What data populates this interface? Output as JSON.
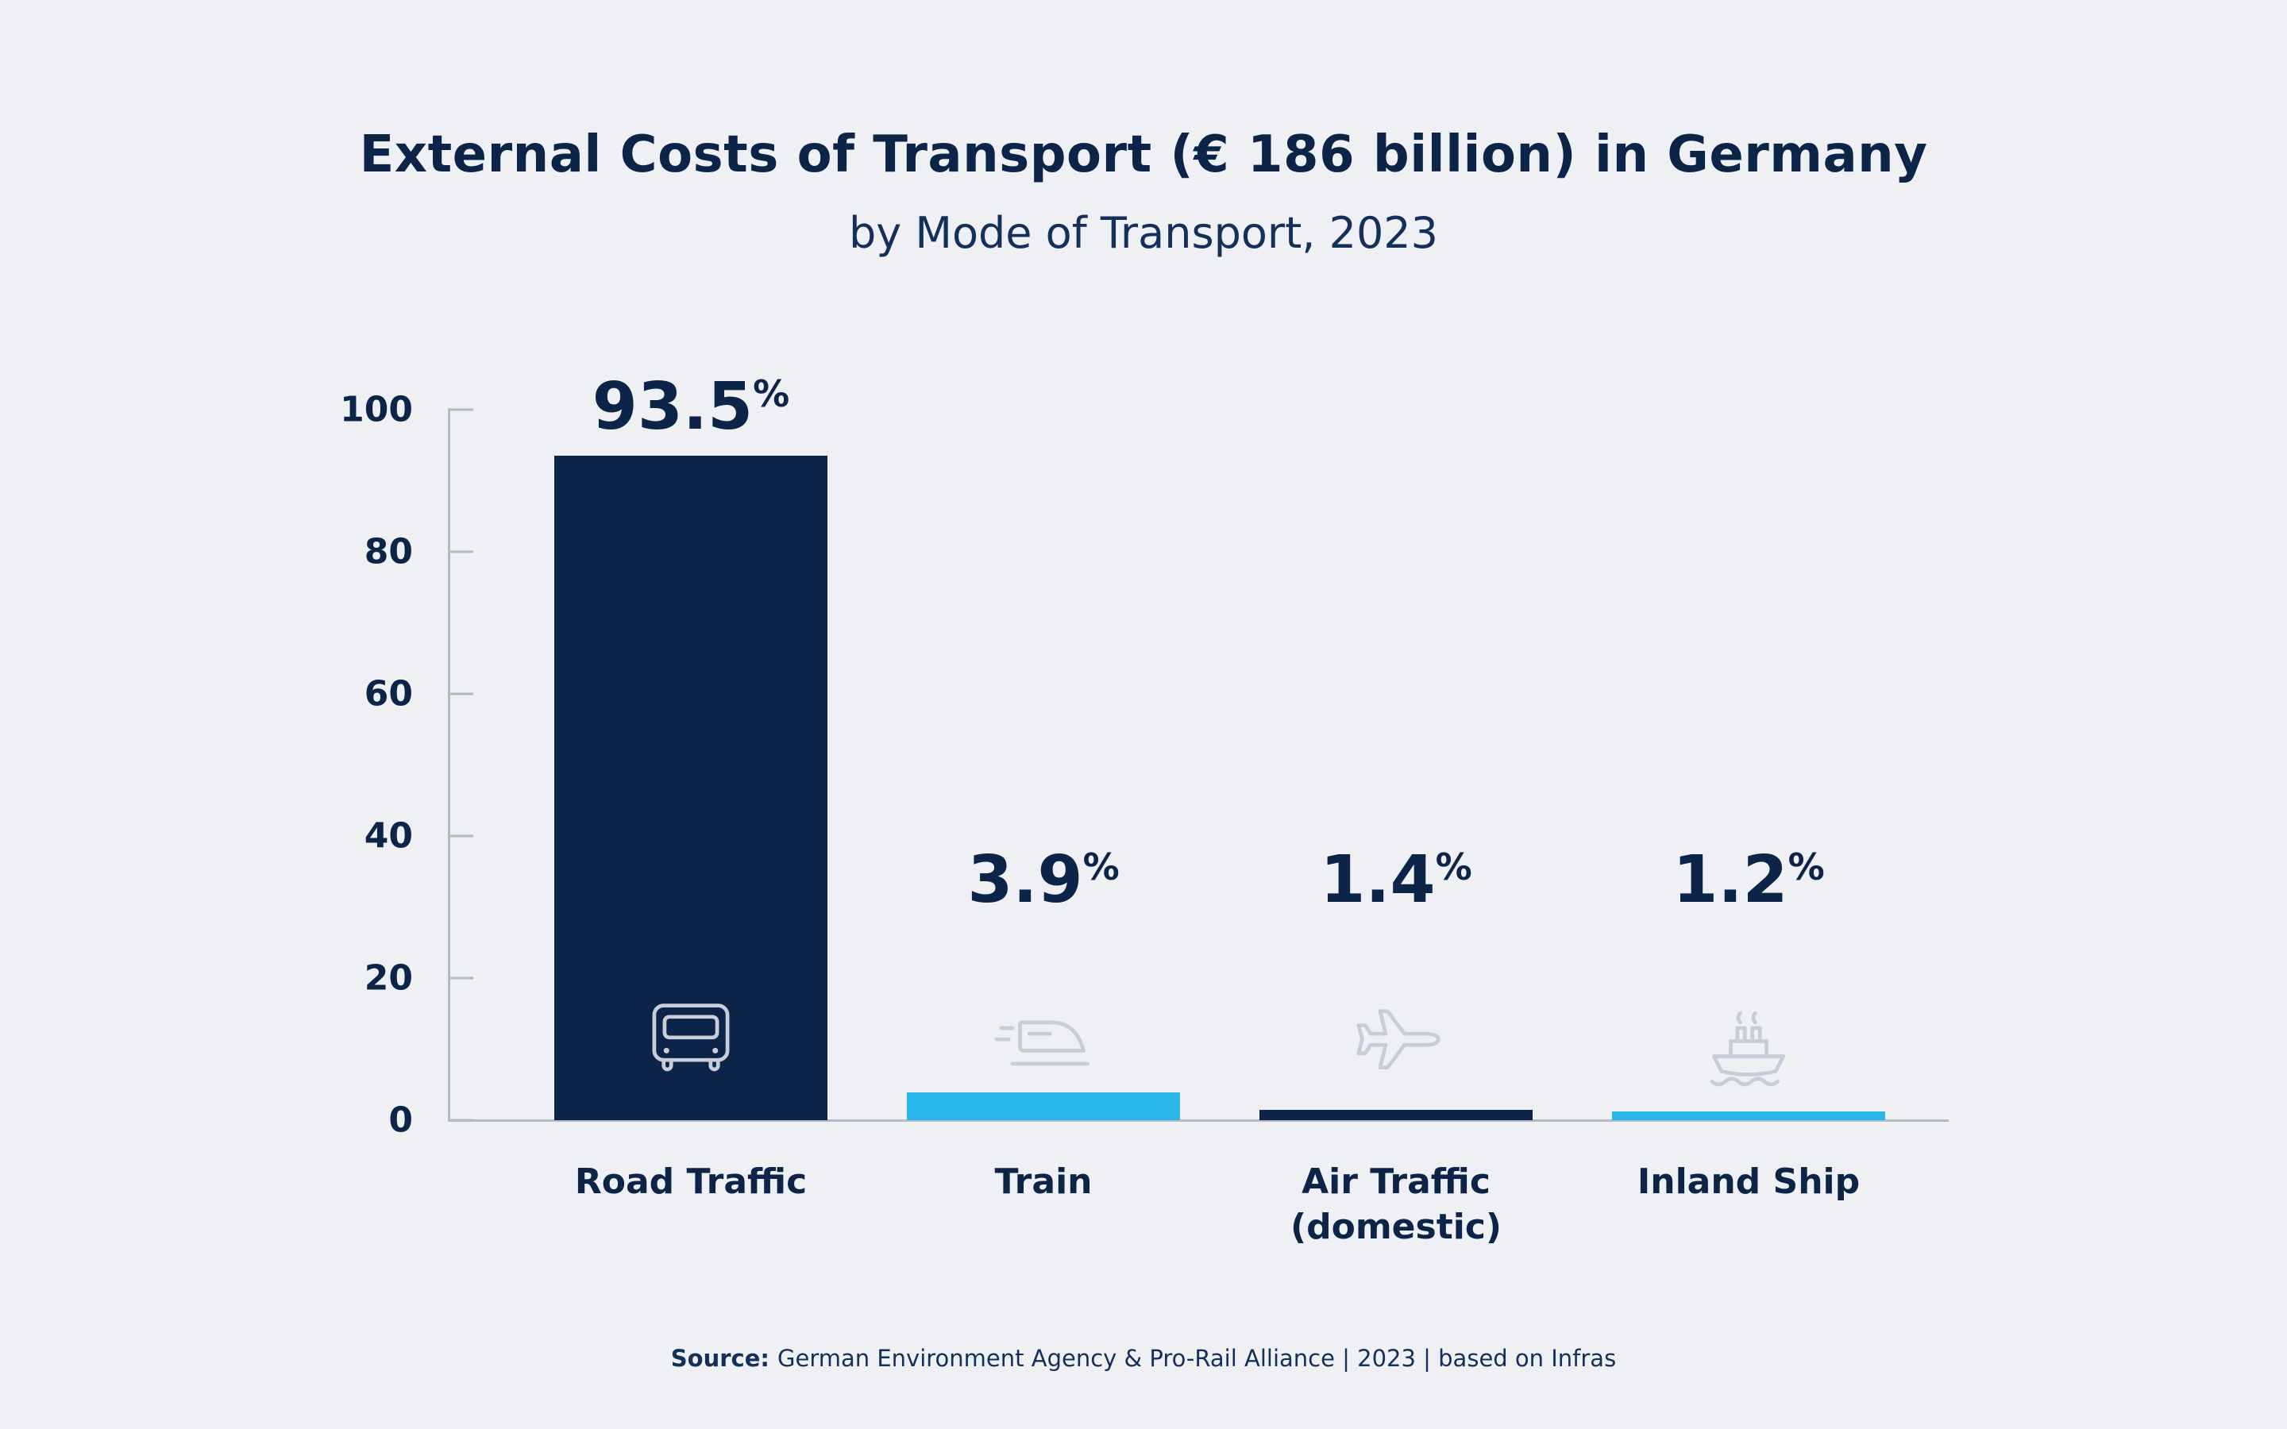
{
  "title": "External Costs of Transport (€ 186 billion) in Germany",
  "subtitle": "by Mode of Transport, 2023",
  "source": {
    "label": "Source:",
    "text": "German Environment Agency & Pro-Rail Alliance | 2023 | based on Infras"
  },
  "colors": {
    "navy": "#0d2449",
    "navy-soft": "#14305a",
    "cyan": "#2ab6e9",
    "background": "#eef0f3",
    "axis": "#b3bac6",
    "icon": "#c8cdd7"
  },
  "chart_data": {
    "type": "bar",
    "title": "External Costs of Transport (€ 186 billion) in Germany",
    "subtitle": "by Mode of Transport, 2023",
    "categories": [
      "Road Traffic",
      "Train",
      "Air Traffic (domestic)",
      "Inland Ship"
    ],
    "values": [
      93.5,
      3.9,
      1.4,
      1.2
    ],
    "value_labels": [
      "93.5",
      "3.9",
      "1.4",
      "1.2"
    ],
    "unit": "%",
    "bar_colors": [
      "navy",
      "cyan",
      "navy",
      "cyan"
    ],
    "icons": [
      "truck-icon",
      "train-icon",
      "plane-icon",
      "ship-icon"
    ],
    "xlabel": "",
    "ylabel": "",
    "ylim": [
      0,
      100
    ],
    "yticks": [
      0,
      20,
      40,
      60,
      80,
      100
    ],
    "grid": false,
    "legend": "none"
  }
}
